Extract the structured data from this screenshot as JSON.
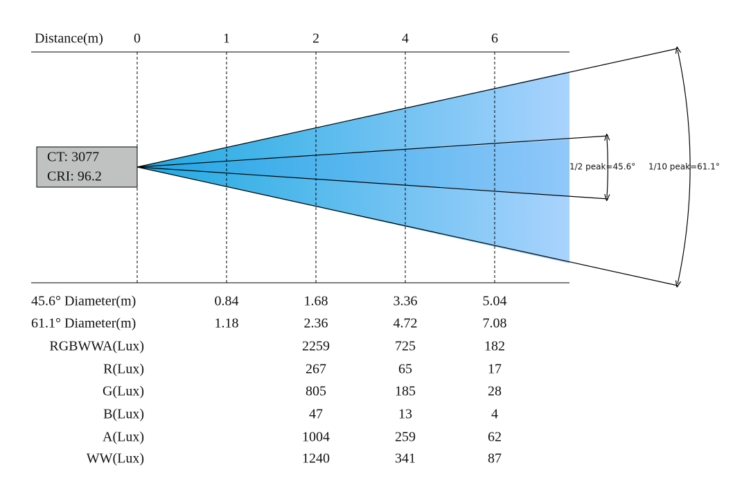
{
  "distance": {
    "label": "Distance(m)",
    "marks": [
      "0",
      "1",
      "2",
      "4",
      "6"
    ]
  },
  "info": {
    "ct": "CT: 3077",
    "cri": "CRI: 96.2"
  },
  "angles": {
    "half_peak": "1/2 peak=45.6°",
    "tenth_peak": "1/10 peak=61.1°"
  },
  "table": {
    "rows": [
      {
        "label": "45.6° Diameter(m)",
        "values": [
          "0.84",
          "1.68",
          "3.36",
          "5.04"
        ]
      },
      {
        "label": "61.1° Diameter(m)",
        "values": [
          "1.18",
          "2.36",
          "4.72",
          "7.08"
        ]
      },
      {
        "label": "RGBWWA(Lux)",
        "values": [
          null,
          "2259",
          "725",
          "182"
        ]
      },
      {
        "label": "R(Lux)",
        "values": [
          null,
          "267",
          "65",
          "17"
        ]
      },
      {
        "label": "G(Lux)",
        "values": [
          null,
          "805",
          "185",
          "28"
        ]
      },
      {
        "label": "B(Lux)",
        "values": [
          null,
          "47",
          "13",
          "4"
        ]
      },
      {
        "label": "A(Lux)",
        "values": [
          null,
          "1004",
          "259",
          "62"
        ]
      },
      {
        "label": "WW(Lux)",
        "values": [
          null,
          "1240",
          "341",
          "87"
        ]
      }
    ]
  }
}
